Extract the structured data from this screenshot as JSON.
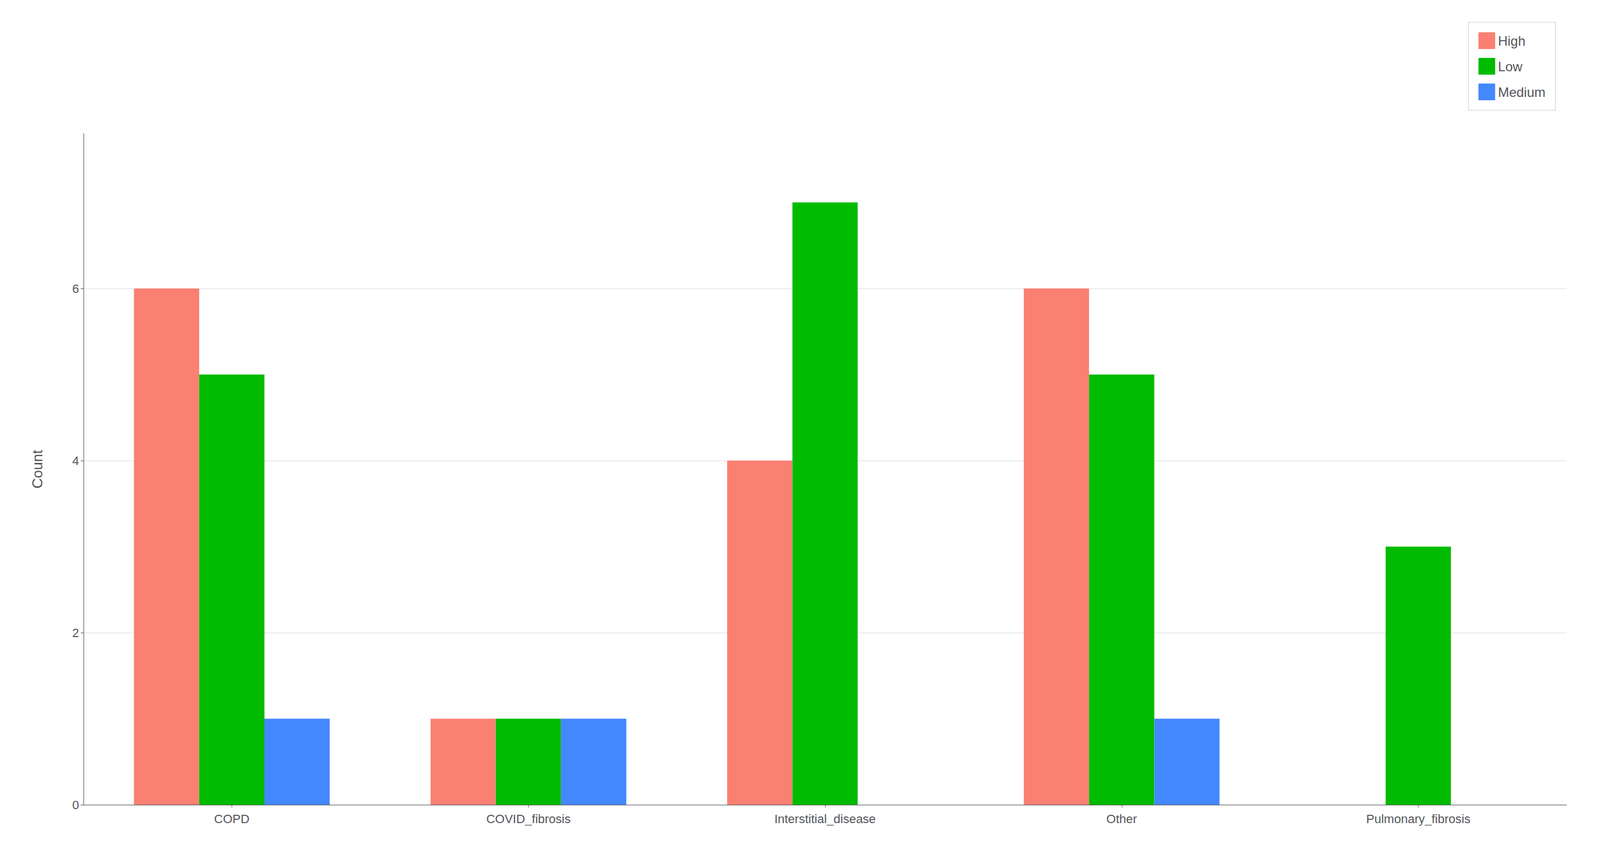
{
  "chart_data": {
    "type": "bar",
    "categories": [
      "COPD",
      "COVID_fibrosis",
      "Interstitial_disease",
      "Other",
      "Pulmonary_fibrosis"
    ],
    "series": [
      {
        "name": "High",
        "color": "#FA8072",
        "values": [
          6,
          1,
          4,
          6,
          0
        ]
      },
      {
        "name": "Low",
        "color": "#00BB00",
        "values": [
          5,
          1,
          7,
          5,
          3
        ]
      },
      {
        "name": "Medium",
        "color": "#4488FF",
        "values": [
          1,
          1,
          0,
          1,
          0
        ]
      }
    ],
    "ylabel": "Count",
    "ylim": [
      0,
      7.8
    ],
    "yticks": [
      0,
      2,
      4,
      6
    ],
    "grid": true,
    "legend": "upper right"
  }
}
